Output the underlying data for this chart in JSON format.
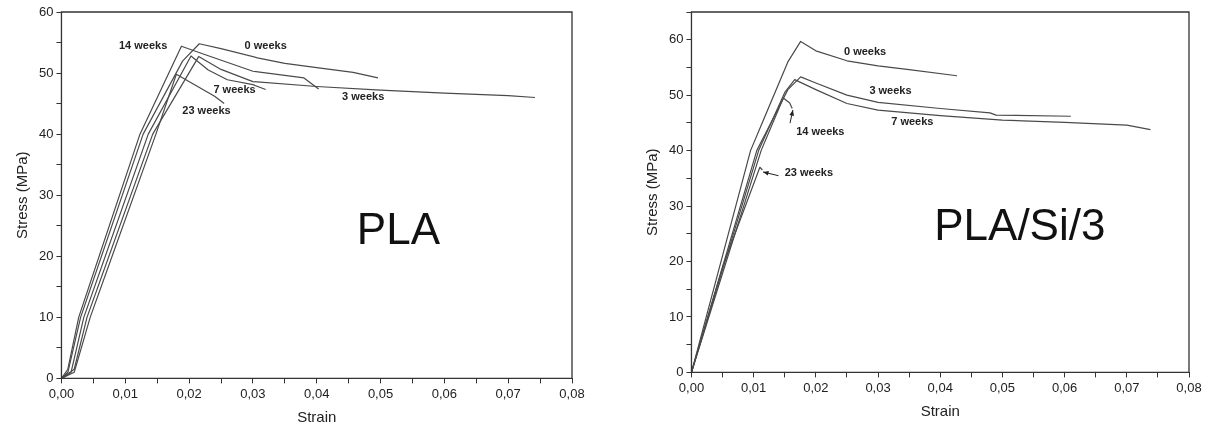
{
  "chart_data": [
    {
      "type": "line",
      "title": "PLA",
      "xlabel": "Strain",
      "ylabel": "Stress (MPa)",
      "xlim": [
        0,
        0.08
      ],
      "ylim": [
        0,
        60
      ],
      "xticks": [
        {
          "value": 0,
          "label": "0,00"
        },
        {
          "value": 0.005,
          "label": null
        },
        {
          "value": 0.01,
          "label": "0,01"
        },
        {
          "value": 0.015,
          "label": null
        },
        {
          "value": 0.02,
          "label": "0,02"
        },
        {
          "value": 0.025,
          "label": null
        },
        {
          "value": 0.03,
          "label": "0,03"
        },
        {
          "value": 0.035,
          "label": null
        },
        {
          "value": 0.04,
          "label": "0,04"
        },
        {
          "value": 0.045,
          "label": null
        },
        {
          "value": 0.05,
          "label": "0,05"
        },
        {
          "value": 0.055,
          "label": null
        },
        {
          "value": 0.06,
          "label": "0,06"
        },
        {
          "value": 0.065,
          "label": null
        },
        {
          "value": 0.07,
          "label": "0,07"
        },
        {
          "value": 0.075,
          "label": null
        },
        {
          "value": 0.08,
          "label": "0,08"
        }
      ],
      "yticks": [
        0,
        {
          "value": 5,
          "label": null
        },
        10,
        {
          "value": 15,
          "label": null
        },
        20,
        {
          "value": 25,
          "label": null
        },
        30,
        {
          "value": 35,
          "label": null
        },
        40,
        {
          "value": 45,
          "label": null
        },
        50,
        {
          "value": 55,
          "label": null
        },
        60
      ],
      "grid": false,
      "legend": false,
      "marker": "none",
      "line_style": "solid",
      "series": [
        {
          "name": "0 weeks",
          "color": "#4a4a4a",
          "x": [
            0,
            0.001,
            0.003,
            0.0128,
            0.019,
            0.0216,
            0.025,
            0.0307,
            0.035,
            0.04,
            0.0457,
            0.0496
          ],
          "values": [
            0,
            1,
            10,
            40,
            52,
            54.8,
            54,
            52.5,
            51.6,
            50.9,
            50.1,
            49.2
          ]
        },
        {
          "name": "3 weeks",
          "color": "#4a4a4a",
          "x": [
            0,
            0.002,
            0.004,
            0.0143,
            0.0215,
            0.025,
            0.03,
            0.04,
            0.05,
            0.06,
            0.07,
            0.0742
          ],
          "values": [
            0,
            1.5,
            10,
            40,
            52.7,
            50.6,
            48.6,
            47.8,
            47.2,
            46.7,
            46.3,
            46
          ]
        },
        {
          "name": "7 weeks",
          "color": "#4a4a4a",
          "x": [
            0,
            0.0015,
            0.0035,
            0.0136,
            0.0203,
            0.023,
            0.026,
            0.03,
            0.032
          ],
          "values": [
            0,
            1,
            10,
            40,
            52.8,
            50.5,
            48.9,
            48.1,
            47.3
          ]
        },
        {
          "name": "14 weeks",
          "color": "#4a4a4a",
          "x": [
            0,
            0.001,
            0.0027,
            0.0123,
            0.0188,
            0.022,
            0.03,
            0.038,
            0.0403
          ],
          "values": [
            0,
            1.5,
            10,
            40,
            54.4,
            53.2,
            50.3,
            49.2,
            47.4
          ]
        },
        {
          "name": "23 weeks",
          "color": "#4a4a4a",
          "x": [
            0,
            0.002,
            0.0045,
            0.0148,
            0.018,
            0.021,
            0.024,
            0.0255
          ],
          "values": [
            0,
            1,
            10,
            40,
            49.8,
            48,
            46.2,
            45
          ]
        }
      ]
    },
    {
      "type": "line",
      "title": "PLA/Si/3",
      "xlabel": "Strain",
      "ylabel": "Stress (MPa)",
      "xlim": [
        0,
        0.08
      ],
      "ylim": [
        0,
        65
      ],
      "xticks": [
        {
          "value": 0,
          "label": "0,00"
        },
        {
          "value": 0.005,
          "label": null
        },
        {
          "value": 0.01,
          "label": "0,01"
        },
        {
          "value": 0.015,
          "label": null
        },
        {
          "value": 0.02,
          "label": "0,02"
        },
        {
          "value": 0.025,
          "label": null
        },
        {
          "value": 0.03,
          "label": "0,03"
        },
        {
          "value": 0.035,
          "label": null
        },
        {
          "value": 0.04,
          "label": "0,04"
        },
        {
          "value": 0.045,
          "label": null
        },
        {
          "value": 0.05,
          "label": "0,05"
        },
        {
          "value": 0.055,
          "label": null
        },
        {
          "value": 0.06,
          "label": "0,06"
        },
        {
          "value": 0.065,
          "label": null
        },
        {
          "value": 0.07,
          "label": "0,07"
        },
        {
          "value": 0.075,
          "label": null
        },
        {
          "value": 0.08,
          "label": "0,08"
        }
      ],
      "yticks": [
        0,
        {
          "value": 5,
          "label": null
        },
        10,
        {
          "value": 15,
          "label": null
        },
        20,
        {
          "value": 25,
          "label": null
        },
        30,
        {
          "value": 35,
          "label": null
        },
        40,
        {
          "value": 45,
          "label": null
        },
        50,
        {
          "value": 55,
          "label": null
        },
        60,
        {
          "value": 65,
          "label": null
        }
      ],
      "grid": false,
      "legend": false,
      "marker": "none",
      "line_style": "solid",
      "series": [
        {
          "name": "0 weeks",
          "color": "#4a4a4a",
          "x": [
            0,
            0.0095,
            0.0155,
            0.01756,
            0.02,
            0.025,
            0.03,
            0.035,
            0.0427
          ],
          "values": [
            0,
            40,
            56,
            59.7,
            58,
            56.2,
            55.3,
            54.6,
            53.5
          ]
        },
        {
          "name": "3 weeks",
          "color": "#4a4a4a",
          "x": [
            0,
            0.0105,
            0.0155,
            0.01756,
            0.02,
            0.025,
            0.03,
            0.04,
            0.048,
            0.049,
            0.061
          ],
          "values": [
            0,
            40,
            51,
            53.3,
            52.2,
            50,
            48.7,
            47.6,
            46.8,
            46.4,
            46.2
          ]
        },
        {
          "name": "7 weeks",
          "color": "#4a4a4a",
          "x": [
            0,
            0.0108,
            0.015,
            0.0166,
            0.02,
            0.025,
            0.03,
            0.04,
            0.05,
            0.06,
            0.07,
            0.0738
          ],
          "values": [
            0,
            40,
            50.5,
            52.8,
            51,
            48.5,
            47.3,
            46.3,
            45.5,
            45.1,
            44.6,
            43.8
          ]
        },
        {
          "name": "14 weeks",
          "color": "#4a4a4a",
          "x": [
            0,
            0.0112,
            0.01477,
            0.0158,
            0.0162
          ],
          "values": [
            0,
            40,
            49.5,
            48.6,
            47.6
          ]
        },
        {
          "name": "23 weeks",
          "color": "#4a4a4a",
          "x": [
            0,
            0.005,
            0.011,
            0.0114
          ],
          "values": [
            0,
            19,
            37,
            36.5
          ]
        }
      ]
    }
  ]
}
